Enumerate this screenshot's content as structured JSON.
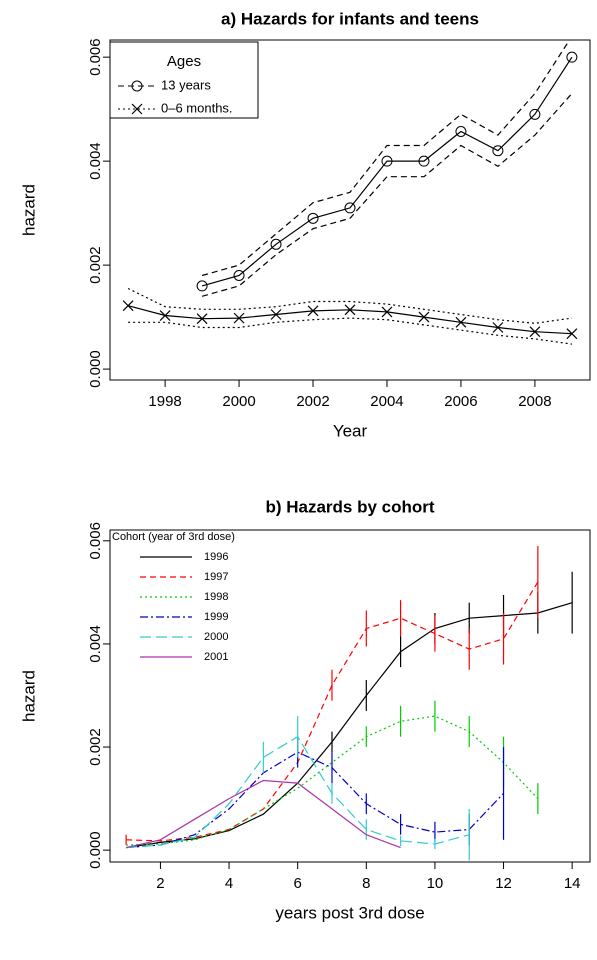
{
  "chart_data": [
    {
      "type": "line",
      "title": "a) Hazards for infants and teens",
      "xlabel": "Year",
      "ylabel": "hazard",
      "x": [
        1997,
        1998,
        1999,
        2000,
        2001,
        2002,
        2003,
        2004,
        2005,
        2006,
        2007,
        2008,
        2009
      ],
      "xlim": [
        1996.51,
        2009.49
      ],
      "xticks": [
        1998,
        2000,
        2002,
        2004,
        2006,
        2008
      ],
      "ylim": [
        -0.00021,
        0.00633
      ],
      "yticks": [
        {
          "value": 0,
          "label": "0.000"
        },
        {
          "value": 0.002,
          "label": "0.002"
        },
        {
          "value": 0.004,
          "label": "0.004"
        },
        {
          "value": 0.006,
          "label": "0.006"
        }
      ],
      "legend_title": "Ages",
      "legend": "upper left",
      "legend_box": true,
      "series": [
        {
          "name": "13 years",
          "color": "#000000",
          "linestyle": "solid",
          "marker": "circle",
          "band_linestyle": "dashed",
          "values": [
            null,
            null,
            0.0016,
            0.0018,
            0.0024,
            0.0029,
            0.0031,
            0.004,
            0.004,
            0.00457,
            0.0042,
            0.0049,
            0.006
          ],
          "upper": [
            null,
            null,
            0.0018,
            0.002,
            0.0026,
            0.0032,
            0.0034,
            0.0043,
            0.0043,
            0.0049,
            0.0045,
            0.0053,
            0.0064
          ],
          "lower": [
            null,
            null,
            0.0014,
            0.0016,
            0.0022,
            0.0027,
            0.0029,
            0.0037,
            0.0037,
            0.0043,
            0.0039,
            0.0045,
            0.0053
          ]
        },
        {
          "name": "0–6 months.",
          "color": "#000000",
          "linestyle": "solid",
          "marker": "x",
          "band_linestyle": "dotted",
          "values": [
            0.00122,
            0.00103,
            0.00097,
            0.00098,
            0.00105,
            0.00112,
            0.00114,
            0.0011,
            0.001,
            0.0009,
            0.0008,
            0.00072,
            0.00068
          ],
          "upper": [
            0.00155,
            0.0012,
            0.00115,
            0.00115,
            0.0012,
            0.0013,
            0.0013,
            0.00125,
            0.00115,
            0.00105,
            0.00095,
            0.00088,
            0.00098
          ],
          "lower": [
            0.0009,
            0.0009,
            0.0008,
            0.0008,
            0.0009,
            0.00095,
            0.00098,
            0.00095,
            0.00085,
            0.00075,
            0.00065,
            0.00058,
            0.00048
          ]
        }
      ]
    },
    {
      "type": "line",
      "title": "b) Hazards by cohort",
      "xlabel": "years post 3rd dose",
      "ylabel": "hazard",
      "x": [
        1,
        2,
        3,
        4,
        5,
        6,
        7,
        8,
        9,
        10,
        11,
        12,
        13,
        14
      ],
      "xlim": [
        0.53,
        14.52
      ],
      "xticks": [
        2,
        4,
        6,
        8,
        10,
        12,
        14
      ],
      "ylim": [
        -0.00023,
        0.00621
      ],
      "yticks": [
        {
          "value": 0,
          "label": "0.000"
        },
        {
          "value": 0.002,
          "label": "0.002"
        },
        {
          "value": 0.004,
          "label": "0.004"
        },
        {
          "value": 0.006,
          "label": "0.006"
        }
      ],
      "legend_title": "Cohort (year of 3rd dose)",
      "legend": "upper left",
      "legend_box": false,
      "series": [
        {
          "name": "1996",
          "color": "#000000",
          "linestyle": "solid",
          "values": [
            5e-05,
            0.00015,
            0.00022,
            0.00038,
            0.0007,
            0.0013,
            0.0021,
            0.003,
            0.00385,
            0.0043,
            0.0045,
            0.00455,
            0.0046,
            0.0048
          ],
          "errors": [
            null,
            null,
            null,
            null,
            null,
            null,
            0.0002,
            0.0003,
            0.0003,
            0.0003,
            0.0003,
            0.0004,
            0.0004,
            0.0006
          ]
        },
        {
          "name": "1997",
          "color": "#ff0000",
          "linestyle": "dashed",
          "values": [
            0.0002,
            0.00018,
            0.00025,
            0.0004,
            0.0008,
            0.0017,
            0.0032,
            0.0043,
            0.0045,
            0.0042,
            0.0039,
            0.0041,
            0.0052,
            null
          ],
          "errors": [
            0.0001,
            null,
            null,
            null,
            null,
            null,
            0.0003,
            0.00035,
            0.00035,
            0.00035,
            0.0004,
            0.0005,
            0.0007,
            null
          ]
        },
        {
          "name": "1998",
          "color": "#00cc00",
          "linestyle": "dotted",
          "values": [
            0.0001,
            0.00012,
            0.0002,
            0.0004,
            0.0008,
            0.0012,
            0.0017,
            0.0022,
            0.0025,
            0.0026,
            0.0023,
            0.0017,
            0.001,
            null
          ],
          "errors": [
            null,
            null,
            null,
            null,
            null,
            null,
            null,
            0.0002,
            0.0003,
            0.0003,
            0.0003,
            0.0005,
            0.0003,
            null
          ]
        },
        {
          "name": "1999",
          "color": "#0000cc",
          "linestyle": "dashdot",
          "values": [
            5e-05,
            0.0001,
            0.0003,
            0.0008,
            0.0015,
            0.0019,
            0.0016,
            0.0009,
            0.0005,
            0.00035,
            0.0004,
            0.0011,
            null,
            null
          ],
          "errors": [
            null,
            null,
            null,
            null,
            null,
            0.0003,
            0.0003,
            0.0002,
            0.0002,
            0.0002,
            0.0003,
            0.0009,
            null,
            null
          ]
        },
        {
          "name": "2000",
          "color": "#33cccc",
          "linestyle": "longdash",
          "values": [
            5e-05,
            0.0001,
            0.00025,
            0.0009,
            0.0018,
            0.0022,
            0.0011,
            0.0004,
            0.00018,
            0.00012,
            0.0003,
            null,
            null,
            null
          ],
          "errors": [
            null,
            null,
            null,
            null,
            0.0003,
            0.0004,
            0.0002,
            0.0002,
            0.0001,
            0.0001,
            0.0005,
            null,
            null,
            null
          ]
        },
        {
          "name": "2001",
          "color": "#aa33aa",
          "linestyle": "solid",
          "values": [
            5e-05,
            0.0002,
            0.0006,
            0.001,
            0.00135,
            0.0013,
            0.0008,
            0.0003,
            5e-05,
            null,
            null,
            null,
            null,
            null
          ],
          "errors": [
            null,
            null,
            null,
            null,
            null,
            null,
            null,
            null,
            null,
            null,
            null,
            null,
            null,
            null
          ]
        }
      ]
    }
  ]
}
